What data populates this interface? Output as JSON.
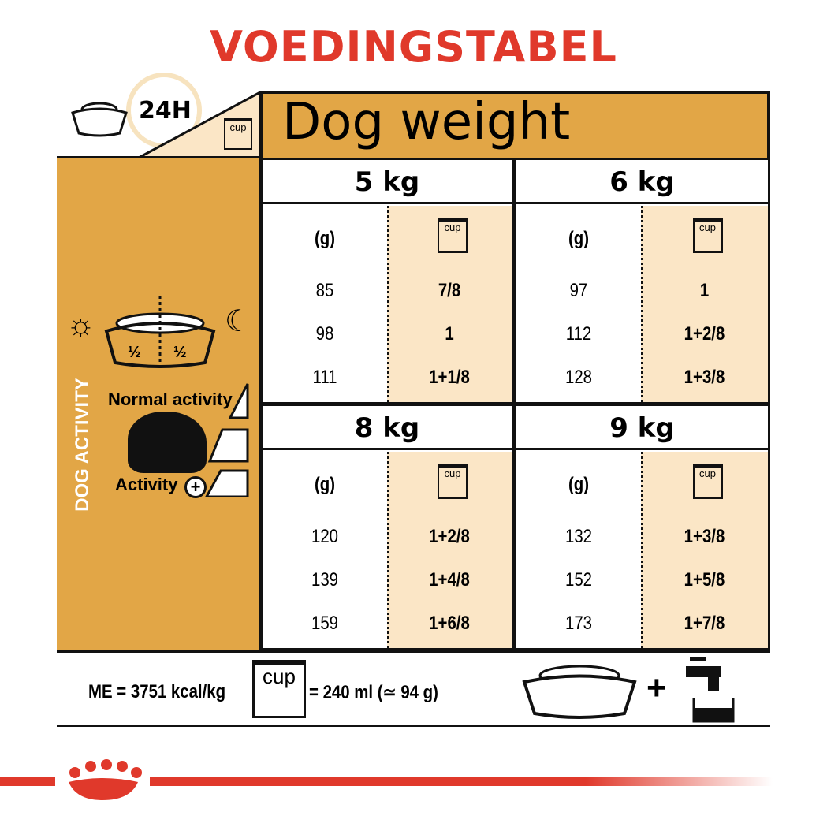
{
  "title": "VOEDINGSTABEL",
  "top_left": {
    "hours": "24H",
    "cup_label": "cup"
  },
  "header": "Dog weight",
  "side": {
    "vertical_label": "DOG ACTIVITY",
    "half_left": "½",
    "half_right": "½",
    "normal_label": "Normal activity",
    "activity_label": "Activity"
  },
  "blocks": [
    {
      "weight": "5 kg",
      "g_label": "(g)",
      "cup_label": "cup",
      "rows": [
        [
          "85",
          "7/8"
        ],
        [
          "98",
          "1"
        ],
        [
          "111",
          "1+1/8"
        ]
      ]
    },
    {
      "weight": "6 kg",
      "g_label": "(g)",
      "cup_label": "cup",
      "rows": [
        [
          "97",
          "1"
        ],
        [
          "112",
          "1+2/8"
        ],
        [
          "128",
          "1+3/8"
        ]
      ]
    },
    {
      "weight": "8 kg",
      "g_label": "(g)",
      "cup_label": "cup",
      "rows": [
        [
          "120",
          "1+2/8"
        ],
        [
          "139",
          "1+4/8"
        ],
        [
          "159",
          "1+6/8"
        ]
      ]
    },
    {
      "weight": "9 kg",
      "g_label": "(g)",
      "cup_label": "cup",
      "rows": [
        [
          "132",
          "1+3/8"
        ],
        [
          "152",
          "1+5/8"
        ],
        [
          "173",
          "1+7/8"
        ]
      ]
    }
  ],
  "footer": {
    "me": "ME = 3751 kcal/kg",
    "cup_label": "cup",
    "cup_eq": "= 240 ml (≃ 94 g)",
    "plus": "+"
  },
  "colors": {
    "orange": "#e2a646",
    "cream": "#fbe6c6",
    "red": "#e0392b"
  }
}
